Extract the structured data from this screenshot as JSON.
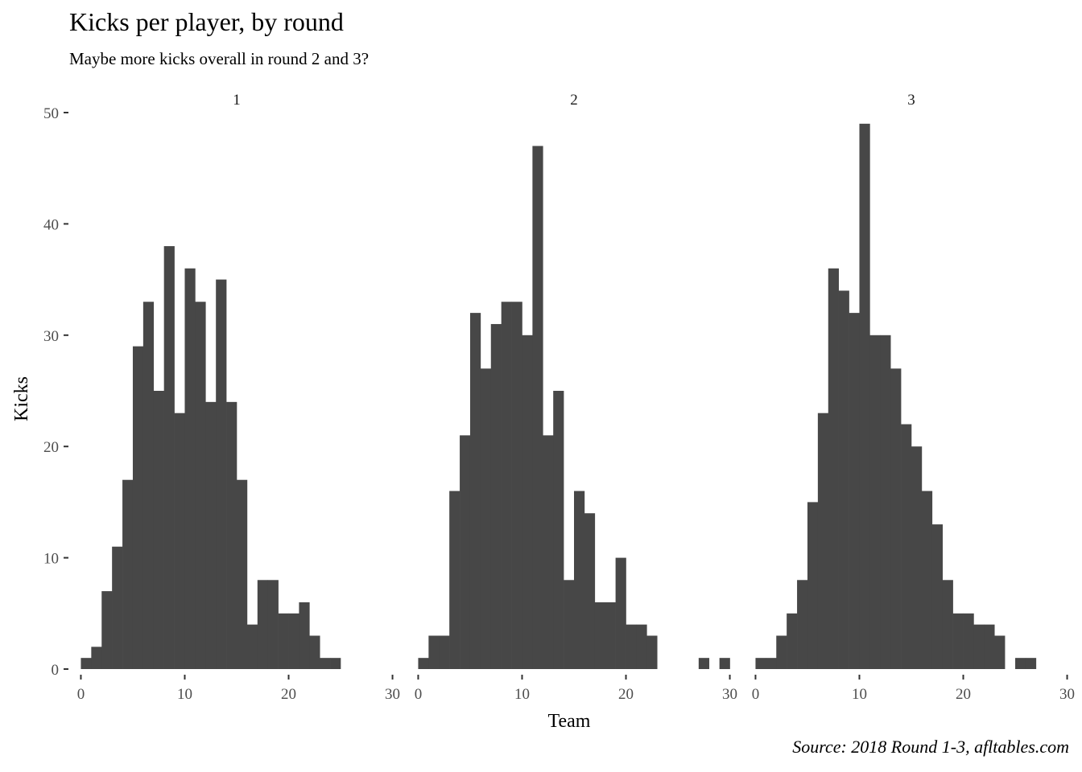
{
  "chart_data": {
    "type": "bar",
    "title": "Kicks per player, by round",
    "subtitle": "Maybe more kicks overall in round 2 and 3?",
    "xlabel": "Team",
    "ylabel": "Kicks",
    "caption": "Source: 2018 Round 1-3, afltables.com",
    "xlim": [
      -0.5,
      30.5
    ],
    "ylim": [
      0,
      50
    ],
    "x_ticks": [
      0,
      10,
      20,
      30
    ],
    "x_tick_labels": [
      "0",
      "10",
      "20",
      "30"
    ],
    "y_ticks": [
      0,
      10,
      20,
      30,
      40,
      50
    ],
    "y_tick_labels": [
      "0",
      "10",
      "20",
      "30",
      "40",
      "50"
    ],
    "bin_start": 0,
    "bin_width": 1,
    "bar_color": "#474747",
    "grid": false,
    "panels": [
      {
        "label": "1",
        "values": [
          1,
          2,
          7,
          11,
          17,
          29,
          33,
          25,
          38,
          23,
          36,
          33,
          24,
          35,
          24,
          17,
          4,
          8,
          8,
          5,
          5,
          6,
          3,
          1,
          1
        ]
      },
      {
        "label": "2",
        "values": [
          1,
          3,
          3,
          16,
          21,
          32,
          27,
          31,
          33,
          33,
          30,
          47,
          21,
          25,
          8,
          16,
          14,
          6,
          6,
          10,
          4,
          4,
          3,
          0,
          0,
          0,
          0,
          1,
          0,
          1
        ]
      },
      {
        "label": "3",
        "values": [
          1,
          1,
          3,
          5,
          8,
          15,
          23,
          36,
          34,
          32,
          49,
          30,
          30,
          27,
          22,
          20,
          16,
          13,
          8,
          5,
          5,
          4,
          4,
          3,
          0,
          1,
          1
        ]
      }
    ]
  }
}
